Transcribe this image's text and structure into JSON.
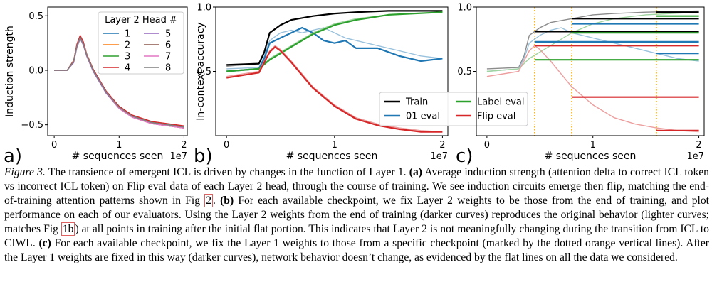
{
  "colors": {
    "train": "#000000",
    "eval01": "#1f77b4",
    "label_eval": "#2ca02c",
    "flip_eval": "#d62728",
    "dotted_lines": "#ffaa00",
    "heads": [
      "#1f77b4",
      "#ff7f0e",
      "#2ca02c",
      "#d62728",
      "#9467bd",
      "#8c564b",
      "#e377c2",
      "#7f7f7f"
    ]
  },
  "chart_data": [
    {
      "type": "line",
      "panel_label": "a)",
      "xlabel": "# sequences seen",
      "ylabel": "Induction strength",
      "x_scale_label": "1e7",
      "xlim": [
        -0.1,
        2.05
      ],
      "ylim": [
        -0.6,
        0.58
      ],
      "xticks": [
        0,
        1,
        2
      ],
      "xtick_labels": [
        "0",
        "1",
        "2"
      ],
      "yticks": [
        -0.5,
        0.0,
        0.5
      ],
      "ytick_labels": [
        "−0.5",
        "0.0",
        "0.5"
      ],
      "legend": {
        "title": "Layer 2 Head #",
        "placement": "top-right",
        "columns": 2,
        "entries": [
          "1",
          "2",
          "3",
          "4",
          "5",
          "6",
          "7",
          "8"
        ]
      },
      "series": [
        {
          "name": "1",
          "x": [
            0,
            0.2,
            0.3,
            0.35,
            0.4,
            0.45,
            0.5,
            0.6,
            0.8,
            1.0,
            1.2,
            1.5,
            2.0
          ],
          "y": [
            0.0,
            0.0,
            0.08,
            0.22,
            0.3,
            0.24,
            0.14,
            0.0,
            -0.2,
            -0.34,
            -0.42,
            -0.48,
            -0.52
          ]
        },
        {
          "name": "2",
          "x": [
            0,
            0.2,
            0.3,
            0.35,
            0.4,
            0.45,
            0.5,
            0.6,
            0.8,
            1.0,
            1.2,
            1.5,
            2.0
          ],
          "y": [
            0.0,
            0.0,
            0.08,
            0.22,
            0.29,
            0.24,
            0.14,
            0.0,
            -0.21,
            -0.35,
            -0.43,
            -0.49,
            -0.53
          ]
        },
        {
          "name": "3",
          "x": [
            0,
            0.2,
            0.3,
            0.35,
            0.4,
            0.45,
            0.5,
            0.6,
            0.8,
            1.0,
            1.2,
            1.5,
            2.0
          ],
          "y": [
            0.0,
            0.0,
            0.09,
            0.23,
            0.31,
            0.25,
            0.15,
            0.01,
            -0.2,
            -0.34,
            -0.42,
            -0.48,
            -0.52
          ]
        },
        {
          "name": "4",
          "x": [
            0,
            0.2,
            0.3,
            0.35,
            0.4,
            0.45,
            0.5,
            0.6,
            0.8,
            1.0,
            1.2,
            1.5,
            2.0
          ],
          "y": [
            0.0,
            0.0,
            0.09,
            0.24,
            0.32,
            0.26,
            0.15,
            0.01,
            -0.19,
            -0.33,
            -0.41,
            -0.47,
            -0.51
          ]
        },
        {
          "name": "5",
          "x": [
            0,
            0.2,
            0.3,
            0.35,
            0.4,
            0.45,
            0.5,
            0.6,
            0.8,
            1.0,
            1.2,
            1.5,
            2.0
          ],
          "y": [
            0.0,
            0.0,
            0.07,
            0.21,
            0.29,
            0.23,
            0.13,
            -0.01,
            -0.21,
            -0.35,
            -0.43,
            -0.49,
            -0.53
          ]
        },
        {
          "name": "6",
          "x": [
            0,
            0.2,
            0.3,
            0.35,
            0.4,
            0.45,
            0.5,
            0.6,
            0.8,
            1.0,
            1.2,
            1.5,
            2.0
          ],
          "y": [
            0.0,
            0.0,
            0.08,
            0.22,
            0.3,
            0.24,
            0.14,
            0.0,
            -0.2,
            -0.34,
            -0.42,
            -0.48,
            -0.52
          ]
        },
        {
          "name": "7",
          "x": [
            0,
            0.2,
            0.3,
            0.35,
            0.4,
            0.45,
            0.5,
            0.6,
            0.8,
            1.0,
            1.2,
            1.5,
            2.0
          ],
          "y": [
            0.0,
            0.0,
            0.08,
            0.22,
            0.3,
            0.24,
            0.14,
            0.0,
            -0.2,
            -0.35,
            -0.43,
            -0.49,
            -0.53
          ]
        },
        {
          "name": "8",
          "x": [
            0,
            0.2,
            0.3,
            0.35,
            0.4,
            0.45,
            0.5,
            0.6,
            0.8,
            1.0,
            1.2,
            1.5,
            2.0
          ],
          "y": [
            0.0,
            0.0,
            0.08,
            0.22,
            0.3,
            0.24,
            0.14,
            0.0,
            -0.2,
            -0.34,
            -0.42,
            -0.48,
            -0.52
          ]
        }
      ]
    },
    {
      "type": "line",
      "panel_label": "b)",
      "xlabel": "# sequences seen",
      "ylabel": "In-context accuracy",
      "x_scale_label": "1e7",
      "xlim": [
        -0.1,
        2.05
      ],
      "ylim": [
        0.0,
        1.0
      ],
      "xticks": [
        0,
        1,
        2
      ],
      "xtick_labels": [
        "0",
        "1",
        "2"
      ],
      "yticks": [
        0.5,
        1.0
      ],
      "ytick_labels": [
        "0.5",
        "1.0"
      ],
      "legend": {
        "placement": "lower-right",
        "columns": 2,
        "entries": [
          "Train",
          "01 eval",
          "Label eval",
          "Flip eval"
        ]
      },
      "series": [
        {
          "name": "Train",
          "shade": "light",
          "x": [
            0,
            0.3,
            0.35,
            0.4,
            0.5,
            0.6,
            0.8,
            1.0,
            1.2,
            1.5,
            2.0
          ],
          "y": [
            0.54,
            0.56,
            0.64,
            0.8,
            0.86,
            0.9,
            0.93,
            0.95,
            0.96,
            0.97,
            0.97
          ]
        },
        {
          "name": "Train",
          "shade": "dark",
          "x": [
            0,
            0.3,
            0.35,
            0.4,
            0.5,
            0.6,
            0.8,
            1.0,
            1.2,
            1.5,
            2.0
          ],
          "y": [
            0.55,
            0.56,
            0.65,
            0.8,
            0.86,
            0.9,
            0.93,
            0.95,
            0.96,
            0.97,
            0.97
          ]
        },
        {
          "name": "01 eval",
          "shade": "light",
          "x": [
            0,
            0.3,
            0.35,
            0.4,
            0.5,
            0.6,
            0.7,
            0.8,
            0.9,
            1.0,
            1.1,
            1.2,
            1.4,
            1.6,
            1.8,
            2.0
          ],
          "y": [
            0.52,
            0.53,
            0.62,
            0.74,
            0.8,
            0.82,
            0.8,
            0.82,
            0.84,
            0.8,
            0.76,
            0.74,
            0.7,
            0.66,
            0.62,
            0.6
          ]
        },
        {
          "name": "01 eval",
          "shade": "dark",
          "x": [
            0,
            0.3,
            0.35,
            0.4,
            0.5,
            0.6,
            0.7,
            0.8,
            0.9,
            1.0,
            1.1,
            1.2,
            1.4,
            1.6,
            1.8,
            2.0
          ],
          "y": [
            0.5,
            0.52,
            0.6,
            0.72,
            0.76,
            0.8,
            0.84,
            0.8,
            0.74,
            0.72,
            0.74,
            0.68,
            0.68,
            0.62,
            0.58,
            0.6
          ]
        },
        {
          "name": "Label eval",
          "shade": "light",
          "x": [
            0,
            0.3,
            0.4,
            0.5,
            0.6,
            0.8,
            1.0,
            1.2,
            1.5,
            2.0
          ],
          "y": [
            0.5,
            0.52,
            0.6,
            0.65,
            0.7,
            0.8,
            0.87,
            0.91,
            0.94,
            0.96
          ]
        },
        {
          "name": "Label eval",
          "shade": "dark",
          "x": [
            0,
            0.3,
            0.4,
            0.5,
            0.6,
            0.8,
            1.0,
            1.2,
            1.5,
            2.0
          ],
          "y": [
            0.5,
            0.52,
            0.59,
            0.64,
            0.69,
            0.79,
            0.86,
            0.9,
            0.94,
            0.96
          ]
        },
        {
          "name": "Flip eval",
          "shade": "light",
          "x": [
            0,
            0.3,
            0.4,
            0.45,
            0.5,
            0.6,
            0.7,
            0.8,
            1.0,
            1.2,
            1.4,
            1.6,
            1.8,
            2.0
          ],
          "y": [
            0.46,
            0.5,
            0.66,
            0.7,
            0.67,
            0.58,
            0.48,
            0.38,
            0.24,
            0.14,
            0.09,
            0.06,
            0.04,
            0.03
          ]
        },
        {
          "name": "Flip eval",
          "shade": "dark",
          "x": [
            0,
            0.3,
            0.4,
            0.45,
            0.5,
            0.6,
            0.7,
            0.8,
            1.0,
            1.2,
            1.4,
            1.6,
            1.8,
            2.0
          ],
          "y": [
            0.45,
            0.49,
            0.65,
            0.69,
            0.66,
            0.57,
            0.47,
            0.37,
            0.23,
            0.13,
            0.08,
            0.05,
            0.03,
            0.03
          ]
        }
      ]
    },
    {
      "type": "line",
      "panel_label": "c)",
      "xlabel": "# sequences seen",
      "ylabel": "",
      "x_scale_label": "1e7",
      "xlim": [
        -0.1,
        2.05
      ],
      "ylim": [
        0.0,
        1.0
      ],
      "xticks": [
        0,
        1,
        2
      ],
      "xtick_labels": [
        "0",
        "1",
        "2"
      ],
      "yticks": [
        0.5,
        1.0
      ],
      "ytick_labels": [
        "0.5",
        "1.0"
      ],
      "checkpoints": [
        0.45,
        0.8,
        1.6
      ],
      "series": [
        {
          "name": "Train",
          "shade": "light",
          "x": [
            0,
            0.3,
            0.35,
            0.4,
            0.5,
            0.6,
            0.8,
            1.0,
            1.2,
            1.5,
            2.0
          ],
          "y": [
            0.52,
            0.53,
            0.62,
            0.78,
            0.84,
            0.88,
            0.91,
            0.94,
            0.95,
            0.96,
            0.97
          ]
        },
        {
          "name": "01 eval",
          "shade": "light",
          "x": [
            0,
            0.3,
            0.35,
            0.4,
            0.5,
            0.6,
            0.7,
            0.8,
            1.0,
            1.2,
            1.4,
            1.6,
            1.8,
            2.0
          ],
          "y": [
            0.5,
            0.52,
            0.6,
            0.72,
            0.78,
            0.82,
            0.84,
            0.8,
            0.76,
            0.72,
            0.68,
            0.64,
            0.6,
            0.58
          ]
        },
        {
          "name": "Label eval",
          "shade": "light",
          "x": [
            0,
            0.3,
            0.4,
            0.5,
            0.6,
            0.8,
            1.0,
            1.2,
            1.5,
            2.0
          ],
          "y": [
            0.5,
            0.52,
            0.6,
            0.65,
            0.7,
            0.8,
            0.87,
            0.91,
            0.94,
            0.96
          ]
        },
        {
          "name": "Flip eval",
          "shade": "light",
          "x": [
            0,
            0.3,
            0.4,
            0.45,
            0.5,
            0.6,
            0.7,
            0.8,
            1.0,
            1.2,
            1.4,
            1.6,
            1.8,
            2.0
          ],
          "y": [
            0.46,
            0.5,
            0.66,
            0.7,
            0.67,
            0.58,
            0.48,
            0.38,
            0.24,
            0.14,
            0.09,
            0.06,
            0.04,
            0.03
          ]
        },
        {
          "name": "Train",
          "shade": "dark",
          "x": [
            0.45,
            2.0
          ],
          "y": [
            0.81,
            0.81
          ]
        },
        {
          "name": "Train",
          "shade": "dark",
          "x": [
            0.8,
            2.0
          ],
          "y": [
            0.91,
            0.91
          ]
        },
        {
          "name": "Train",
          "shade": "dark",
          "x": [
            1.6,
            2.0
          ],
          "y": [
            0.96,
            0.96
          ]
        },
        {
          "name": "01 eval",
          "shade": "dark",
          "x": [
            0.45,
            2.0
          ],
          "y": [
            0.73,
            0.73
          ]
        },
        {
          "name": "01 eval",
          "shade": "dark",
          "x": [
            0.8,
            2.0
          ],
          "y": [
            0.87,
            0.87
          ]
        },
        {
          "name": "01 eval",
          "shade": "dark",
          "x": [
            1.6,
            2.0
          ],
          "y": [
            0.64,
            0.64
          ]
        },
        {
          "name": "Label eval",
          "shade": "dark",
          "x": [
            0.45,
            2.0
          ],
          "y": [
            0.59,
            0.59
          ]
        },
        {
          "name": "Label eval",
          "shade": "dark",
          "x": [
            0.8,
            2.0
          ],
          "y": [
            0.8,
            0.8
          ]
        },
        {
          "name": "Label eval",
          "shade": "dark",
          "x": [
            1.6,
            2.0
          ],
          "y": [
            0.93,
            0.93
          ]
        },
        {
          "name": "Flip eval",
          "shade": "dark",
          "x": [
            0.45,
            2.0
          ],
          "y": [
            0.7,
            0.7
          ]
        },
        {
          "name": "Flip eval",
          "shade": "dark",
          "x": [
            0.8,
            2.0
          ],
          "y": [
            0.3,
            0.3
          ]
        },
        {
          "name": "Flip eval",
          "shade": "dark",
          "x": [
            1.6,
            2.0
          ],
          "y": [
            0.04,
            0.04
          ]
        }
      ]
    }
  ],
  "caption": {
    "label": "Figure 3.",
    "s1": " The transience of emergent ICL is driven by changes in the function of Layer 1. ",
    "a": "(a)",
    "s2": " Average induction strength (attention delta to correct ICL token vs incorrect ICL token) on Flip eval data of each Layer 2 head, through the course of training. We see induction circuits emerge then flip, matching the end-of-training attention patterns shown in Fig ",
    "ref1": "2",
    "s3": ". ",
    "b": "(b)",
    "s4": " For each available checkpoint, we fix Layer 2 weights to be those from the end of training, and plot performance on each of our evaluators. Using the Layer 2 weights from the end of training (darker curves) reproduces the original behavior (lighter curves; matches Fig ",
    "ref2": "1b",
    "s5": ") at all points in training after the initial flat portion. This indicates that Layer 2 is not meaningfully changing during the transition from ICL to CIWL. ",
    "c": "(c)",
    "s6": " For each available checkpoint, we fix the Layer 1 weights to those from a specific checkpoint (marked by the dotted orange vertical lines). After the Layer 1 weights are fixed in this way (darker curves), network behavior doesn’t change, as evidenced by the flat lines on all the data we considered."
  }
}
